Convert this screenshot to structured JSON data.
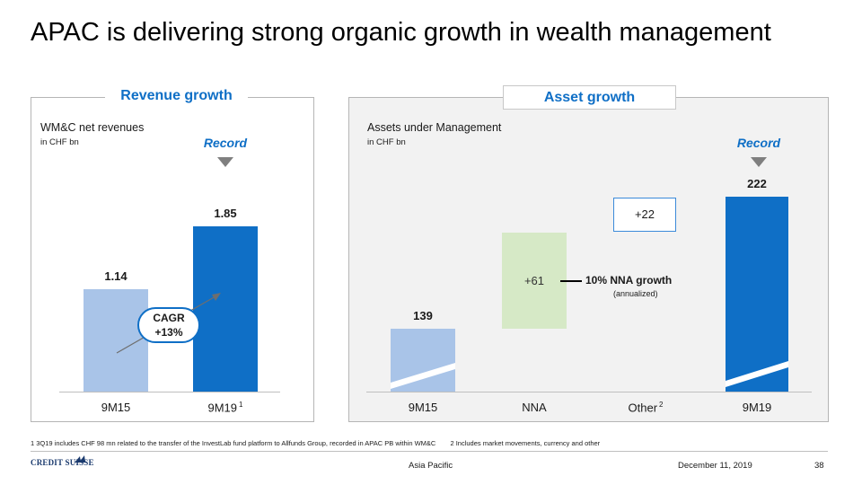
{
  "slide": {
    "title": "APAC is delivering strong organic growth in wealth management"
  },
  "revenue_panel": {
    "header": "Revenue growth",
    "metric": "WM&C net revenues",
    "unit": "in CHF bn",
    "record_label": "Record",
    "cagr_line1": "CAGR",
    "cagr_line2": "+13%",
    "bars": [
      {
        "label": "9M15",
        "value_label": "1.14",
        "footnote": ""
      },
      {
        "label": "9M19",
        "value_label": "1.85",
        "footnote": "1"
      }
    ]
  },
  "asset_panel": {
    "header": "Asset growth",
    "metric": "Assets under Management",
    "unit": "in CHF bn",
    "record_label": "Record",
    "nna_delta": "+61",
    "other_delta": "+22",
    "nna_growth": "10% NNA growth",
    "nna_growth_note": "(annualized)",
    "bars": [
      {
        "label": "9M15",
        "value_label": "139",
        "footnote": ""
      },
      {
        "label": "NNA",
        "value_label": "",
        "footnote": ""
      },
      {
        "label": "Other",
        "value_label": "",
        "footnote": "2"
      },
      {
        "label": "9M19",
        "value_label": "222",
        "footnote": ""
      }
    ]
  },
  "chart_data": [
    {
      "type": "bar",
      "title": "Revenue growth",
      "ylabel": "WM&C net revenues in CHF bn",
      "categories": [
        "9M15",
        "9M19"
      ],
      "values": [
        1.14,
        1.85
      ],
      "annotations": [
        "Record",
        "CAGR +13%"
      ],
      "colors": [
        "#a9c4e8",
        "#0f6fc6"
      ]
    },
    {
      "type": "bar",
      "title": "Asset growth",
      "ylabel": "Assets under Management in CHF bn",
      "categories": [
        "9M15",
        "NNA",
        "Other",
        "9M19"
      ],
      "values": [
        139,
        61,
        22,
        222
      ],
      "annotations": [
        "Record",
        "10% NNA growth (annualized)"
      ],
      "colors": [
        "#a9c4e8",
        "#d6e9c6",
        "#ffffff",
        "#0f6fc6"
      ]
    }
  ],
  "footnotes": {
    "note1": "1 3Q19 includes CHF 98 mn related to the transfer of the InvestLab fund platform to Allfunds Group, recorded in APAC PB within WM&C",
    "note2": "2 Includes market movements, currency and other"
  },
  "footer": {
    "logo_text": "CREDIT SUISSE",
    "section": "Asia Pacific",
    "date": "December 11, 2019",
    "page": "38"
  },
  "colors": {
    "accent": "#0f6fc6",
    "light_blue": "#a9c4e8",
    "light_green": "#d6e9c6"
  }
}
